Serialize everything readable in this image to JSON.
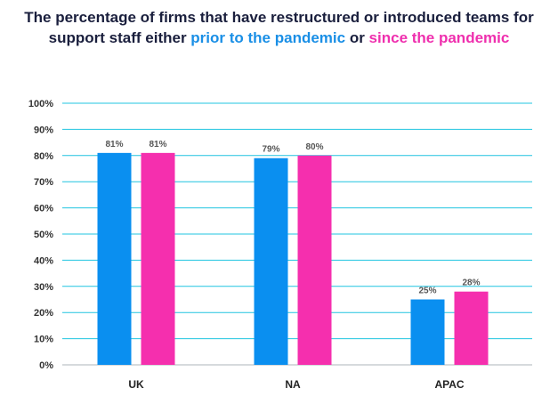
{
  "chart_data": {
    "type": "bar",
    "title_parts": {
      "line1": "The percentage of firms that have restructured or introduced teams for",
      "line2_pre": "support staff either ",
      "series_a_phrase": "prior to the pandemic",
      "connector": " or ",
      "series_b_phrase": "since the pandemic"
    },
    "categories": [
      "UK",
      "NA",
      "APAC"
    ],
    "series": [
      {
        "name": "prior to the pandemic",
        "color": "#0a8ff0",
        "values": [
          81,
          79,
          25
        ],
        "labels": [
          "81%",
          "79%",
          "25%"
        ]
      },
      {
        "name": "since the pandemic",
        "color": "#f52fae",
        "values": [
          81,
          80,
          28
        ],
        "labels": [
          "81%",
          "80%",
          "28%"
        ]
      }
    ],
    "ylim": [
      0,
      100
    ],
    "yticks": [
      0,
      10,
      20,
      30,
      40,
      50,
      60,
      70,
      80,
      90,
      100
    ],
    "ytick_labels": [
      "0%",
      "10%",
      "20%",
      "30%",
      "40%",
      "50%",
      "60%",
      "70%",
      "80%",
      "90%",
      "100%"
    ],
    "grid": true,
    "grid_color": "#20c4e0",
    "xlabel": "",
    "ylabel": ""
  }
}
